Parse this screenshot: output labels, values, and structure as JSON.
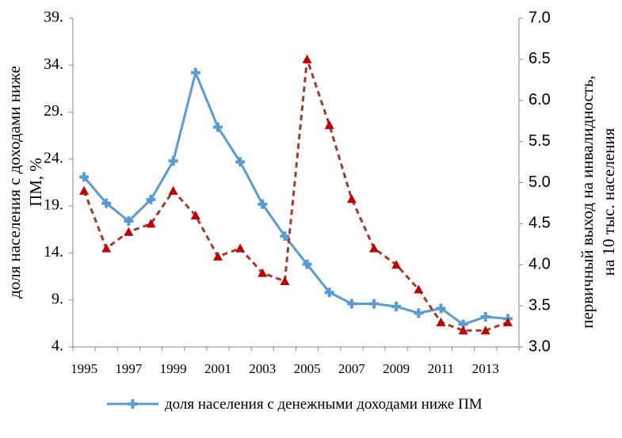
{
  "chart_data": {
    "type": "line",
    "ylabel": [
      "доля населения с доходами ниже",
      "ПМ, %"
    ],
    "y2label": [
      "первичный выход на инвалидность,",
      "на 10 тыс. населения"
    ],
    "categories": [
      "1995",
      null,
      "1997",
      null,
      "1999",
      null,
      "2001",
      null,
      "2003",
      null,
      "2005",
      null,
      "2007",
      null,
      "2009",
      null,
      "2011",
      null,
      "2013",
      null
    ],
    "series": [
      {
        "name": "доля населения с денежными доходами ниже ПМ",
        "color": "#5b9bd5",
        "axis": "y",
        "values": [
          22.1,
          19.3,
          17.4,
          19.7,
          23.8,
          33.2,
          27.4,
          23.7,
          19.2,
          15.8,
          12.8,
          9.8,
          8.6,
          8.6,
          8.3,
          7.6,
          8.1,
          6.4,
          7.2,
          7.0
        ]
      },
      {
        "color": "#c00000",
        "axis": "y2",
        "values": [
          4.9,
          4.2,
          4.4,
          4.5,
          4.9,
          4.6,
          4.1,
          4.2,
          3.9,
          3.8,
          6.5,
          5.7,
          4.8,
          4.2,
          4.0,
          3.7,
          3.3,
          3.2,
          3.2,
          3.3
        ]
      }
    ],
    "ylim": [
      4,
      39
    ],
    "yticks": [
      {
        "value": 4,
        "label": "4."
      },
      {
        "value": 9,
        "label": "9."
      },
      {
        "value": 14,
        "label": "14."
      },
      {
        "value": 19,
        "label": "19."
      },
      {
        "value": 24,
        "label": "24."
      },
      {
        "value": 29,
        "label": "29."
      },
      {
        "value": 34,
        "label": "34."
      },
      {
        "value": 39,
        "label": "39."
      }
    ],
    "y2lim": [
      3,
      7
    ],
    "y2ticks": [
      {
        "value": 3,
        "label": "3.0"
      },
      3.5,
      {
        "value": 4,
        "label": "4.0"
      },
      4.5,
      {
        "value": 5,
        "label": "5.0"
      },
      5.5,
      {
        "value": 6,
        "label": "6.0"
      },
      6.5,
      {
        "value": 7,
        "label": "7.0"
      }
    ],
    "grid": false
  }
}
